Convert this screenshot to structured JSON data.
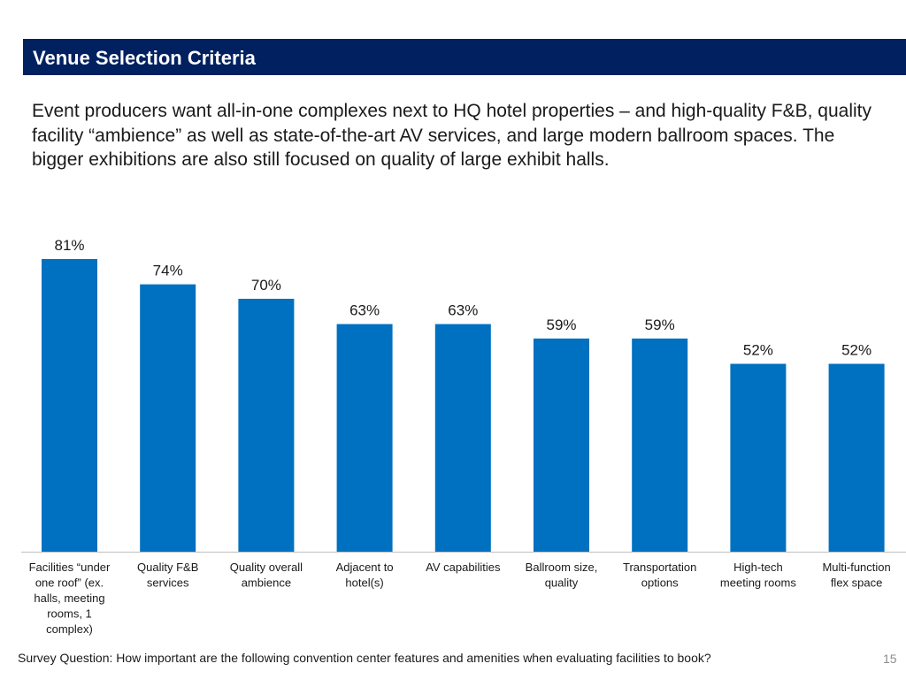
{
  "title": "Venue Selection Criteria",
  "subtitle": "Event producers want all-in-one complexes next to HQ hotel properties – and high-quality F&B, quality facility “ambience” as well as state-of-the-art AV services, and large modern ballroom spaces. The bigger exhibitions are also still focused on quality of large exhibit halls.",
  "footer": "Survey Question: How important are the following convention center features and amenities when evaluating facilities to book?",
  "page_number": "15",
  "colors": {
    "bar": "#0070C0",
    "title_bg": "#002060",
    "axis": "#bfbfbf"
  },
  "chart_data": {
    "type": "bar",
    "title": "",
    "xlabel": "",
    "ylabel": "",
    "ylim": [
      0,
      100
    ],
    "grid": false,
    "value_format": "percent",
    "categories": [
      "Facilities “under one roof” (ex. halls, meeting rooms, 1 complex)",
      "Quality F&B services",
      "Quality overall ambience",
      "Adjacent to hotel(s)",
      "AV capabilities",
      "Ballroom size, quality",
      "Transportation options",
      "High-tech meeting rooms",
      "Multi-function flex space"
    ],
    "category_lines": [
      [
        "Facilities “under",
        "one roof” (ex.",
        "halls, meeting",
        "rooms, 1",
        "complex)"
      ],
      [
        "Quality F&B",
        "services"
      ],
      [
        "Quality overall",
        "ambience"
      ],
      [
        "Adjacent to",
        "hotel(s)"
      ],
      [
        "AV capabilities"
      ],
      [
        "Ballroom size,",
        "quality"
      ],
      [
        "Transportation",
        "options"
      ],
      [
        "High-tech",
        "meeting rooms"
      ],
      [
        "Multi-function",
        "flex space"
      ]
    ],
    "values": [
      81,
      74,
      70,
      63,
      63,
      59,
      59,
      52,
      52
    ],
    "labels": [
      "81%",
      "74%",
      "70%",
      "63%",
      "63%",
      "59%",
      "59%",
      "52%",
      "52%"
    ]
  }
}
